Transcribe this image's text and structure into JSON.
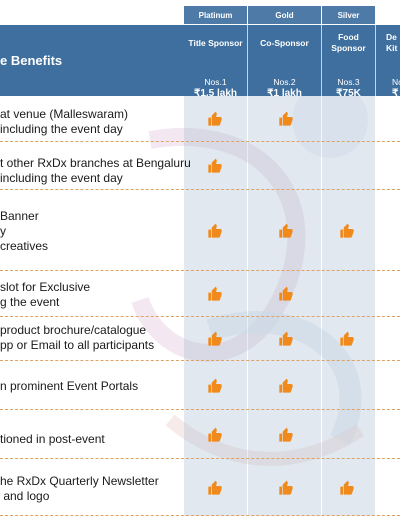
{
  "tiers": [
    "Platinum",
    "Gold",
    "Silver"
  ],
  "header_title": "e Benefits",
  "columns": [
    {
      "name": "Title Sponsor",
      "nos": "Nos.1",
      "price": "₹1.5 lakh"
    },
    {
      "name": "Co-Sponsor",
      "nos": "Nos.2",
      "price": "₹1 lakh"
    },
    {
      "name": "Food Sponsor",
      "nos": "Nos.3",
      "price": "₹75K"
    },
    {
      "name": "De Kit",
      "nos": "No",
      "price": "₹"
    }
  ],
  "rows": [
    {
      "text": "at venue (Malleswaram)\nincluding the event day",
      "marks": [
        true,
        true,
        false
      ]
    },
    {
      "text": "t other RxDx branches at Bengaluru\nincluding the event day",
      "marks": [
        true,
        false,
        false
      ]
    },
    {
      "text": "Banner\ny\ncreatives",
      "marks": [
        true,
        true,
        true
      ]
    },
    {
      "text": "slot for Exclusive\ng the event",
      "marks": [
        true,
        true,
        false
      ]
    },
    {
      "text": "product brochure/catalogue\npp or Email to all participants",
      "marks": [
        true,
        true,
        true
      ]
    },
    {
      "text": "n prominent Event Portals",
      "marks": [
        true,
        true,
        false
      ]
    },
    {
      "text": "tioned in post-event",
      "marks": [
        true,
        true,
        false
      ]
    },
    {
      "text": "he RxDx Quarterly Newsletter\n and logo",
      "marks": [
        true,
        true,
        true
      ]
    }
  ],
  "colors": {
    "header": "#3f6f9e",
    "tier": "#4d7aa6",
    "thumb": "#f08a1c",
    "divider": "#e0a262"
  },
  "icon": "thumbs-up-icon"
}
